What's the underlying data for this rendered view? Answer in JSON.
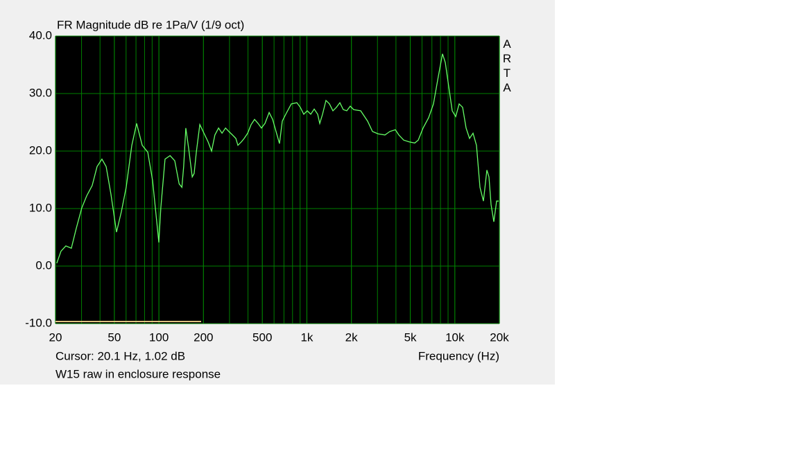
{
  "chart_data": {
    "type": "line",
    "title": "FR Magnitude dB re 1Pa/V (1/9 oct)",
    "watermark": "ARTA",
    "x_label": "Frequency (Hz)",
    "cursor_readout": "Cursor: 20.1 Hz, 1.02 dB",
    "caption": "W15 raw in enclosure response",
    "log_x": true,
    "grid": true,
    "background": "#000000",
    "grid_color": "#008000",
    "xlim": [
      20,
      20000
    ],
    "ylim": [
      -10,
      40
    ],
    "xticks": [
      20,
      50,
      100,
      200,
      500,
      {
        "value": 1000,
        "label": "1k"
      },
      {
        "value": 2000,
        "label": "2k"
      },
      {
        "value": 5000,
        "label": "5k"
      },
      {
        "value": 10000,
        "label": "10k"
      },
      {
        "value": 20000,
        "label": "20k"
      }
    ],
    "minor_xticks": [
      30,
      40,
      60,
      70,
      80,
      90,
      300,
      400,
      600,
      700,
      800,
      900,
      3000,
      4000,
      6000,
      7000,
      8000,
      9000
    ],
    "yticks": [
      {
        "value": -10,
        "label": "-10.0"
      },
      {
        "value": 0,
        "label": "0.0"
      },
      {
        "value": 10,
        "label": "10.0"
      },
      {
        "value": 20,
        "label": "20.0"
      },
      {
        "value": 30,
        "label": "30.0"
      },
      {
        "value": 40,
        "label": "40.0"
      }
    ],
    "x": [
      20.4,
      21.8,
      23.5,
      25.6,
      27.6,
      30.1,
      32.5,
      35.4,
      38.2,
      41.2,
      44.0,
      47.4,
      51.7,
      55.8,
      60.1,
      65.6,
      70.7,
      77.1,
      84.1,
      90.6,
      99.9,
      103,
      110,
      119,
      128,
      137,
      143,
      147,
      152,
      159,
      168,
      173,
      179,
      189,
      199,
      215,
      227,
      239,
      253,
      267,
      282,
      297,
      314,
      331,
      342,
      361,
      377,
      398,
      420,
      443,
      468,
      493,
      521,
      556,
      587,
      619,
      653,
      682,
      720,
      785,
      856,
      903,
      953,
      1006,
      1062,
      1121,
      1183,
      1222,
      1276,
      1346,
      1421,
      1500,
      1583,
      1671,
      1763,
      1861,
      1964,
      2074,
      2310,
      2573,
      2776,
      3025,
      3370,
      3635,
      3964,
      4182,
      4511,
      4917,
      5360,
      5657,
      6101,
      6652,
      7172,
      7736,
      8253,
      8617,
      9096,
      9602,
      10136,
      10696,
      11290,
      11914,
      12573,
      13272,
      14005,
      14786,
      15604,
      16468,
      17012,
      17572,
      18350,
      19156,
      19784
    ],
    "series": [
      {
        "color": "#66ff66",
        "values": [
          0.5,
          2.6,
          3.5,
          3.1,
          6.5,
          10.1,
          12.2,
          14.0,
          17.3,
          18.6,
          17.3,
          12.5,
          5.9,
          9.5,
          13.7,
          21.0,
          24.8,
          21.0,
          19.8,
          14.9,
          4.1,
          10.1,
          18.6,
          19.2,
          18.3,
          14.3,
          13.7,
          17.3,
          24.0,
          20.4,
          15.5,
          16.1,
          19.8,
          24.6,
          23.4,
          21.6,
          20.0,
          22.8,
          24.0,
          23.1,
          24.0,
          23.4,
          22.8,
          22.2,
          21.0,
          21.6,
          22.2,
          23.1,
          24.6,
          25.5,
          24.8,
          24.0,
          24.8,
          26.7,
          25.5,
          23.4,
          21.3,
          25.2,
          26.4,
          28.2,
          28.4,
          27.6,
          26.4,
          27.0,
          26.4,
          27.3,
          26.4,
          24.8,
          26.4,
          28.8,
          28.2,
          27.0,
          27.6,
          28.4,
          27.2,
          27.0,
          27.8,
          27.2,
          27.0,
          25.2,
          23.4,
          23.0,
          22.8,
          23.4,
          23.7,
          22.8,
          21.9,
          21.6,
          21.4,
          21.9,
          24.0,
          25.8,
          28.2,
          33.0,
          36.9,
          35.4,
          31.2,
          27.0,
          26.0,
          28.2,
          27.6,
          24.0,
          22.2,
          23.1,
          21.0,
          13.7,
          11.3,
          16.7,
          15.5,
          10.7,
          7.7,
          11.3,
          11.3
        ]
      }
    ]
  }
}
